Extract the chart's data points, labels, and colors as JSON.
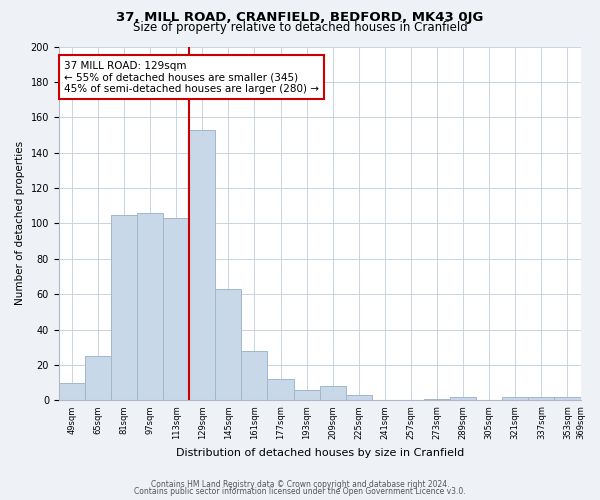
{
  "title": "37, MILL ROAD, CRANFIELD, BEDFORD, MK43 0JG",
  "subtitle": "Size of property relative to detached houses in Cranfield",
  "xlabel": "Distribution of detached houses by size in Cranfield",
  "ylabel": "Number of detached properties",
  "bin_labels": [
    "49sqm",
    "65sqm",
    "81sqm",
    "97sqm",
    "113sqm",
    "129sqm",
    "145sqm",
    "161sqm",
    "177sqm",
    "193sqm",
    "209sqm",
    "225sqm",
    "241sqm",
    "257sqm",
    "273sqm",
    "289sqm",
    "305sqm",
    "321sqm",
    "337sqm",
    "353sqm",
    "369sqm"
  ],
  "bar_values": [
    10,
    25,
    105,
    106,
    103,
    153,
    63,
    28,
    12,
    6,
    8,
    3,
    0,
    0,
    1,
    2,
    0,
    2,
    2,
    2
  ],
  "bar_color": "#c8d8e8",
  "bar_edge_color": "#a0b8cc",
  "highlight_line_index": 5,
  "highlight_color": "#cc0000",
  "annotation_text": "37 MILL ROAD: 129sqm\n← 55% of detached houses are smaller (345)\n45% of semi-detached houses are larger (280) →",
  "annotation_box_color": "#ffffff",
  "annotation_box_edge": "#cc0000",
  "ylim": [
    0,
    200
  ],
  "yticks": [
    0,
    20,
    40,
    60,
    80,
    100,
    120,
    140,
    160,
    180,
    200
  ],
  "footer_line1": "Contains HM Land Registry data © Crown copyright and database right 2024.",
  "footer_line2": "Contains public sector information licensed under the Open Government Licence v3.0.",
  "bg_color": "#eef2f7",
  "plot_bg_color": "#ffffff",
  "grid_color": "#c8d4e0"
}
